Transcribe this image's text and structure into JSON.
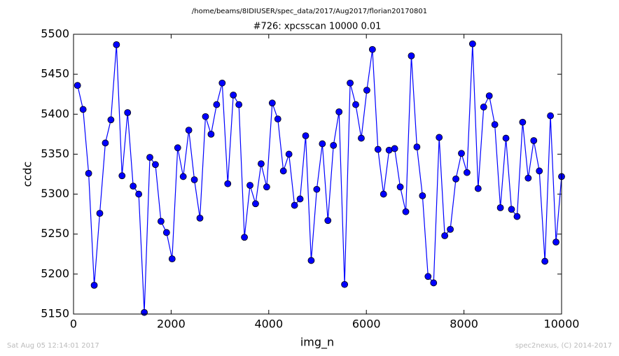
{
  "chart_data": {
    "type": "line",
    "suptitle": "/home/beams/8IDIUSER/spec_data/2017/Aug2017/florian20170801",
    "title": "#726: xpcsscan 10000 0.01",
    "x_label": "img_n",
    "y_label": "ccdc",
    "footer_left": "Sat Aug 05 12:14:01 2017",
    "footer_right": "spec2nexus, (C) 2014-2017",
    "x": [
      82,
      196,
      310,
      424,
      538,
      652,
      766,
      880,
      994,
      1108,
      1222,
      1336,
      1450,
      1564,
      1678,
      1792,
      1906,
      2020,
      2134,
      2248,
      2362,
      2476,
      2590,
      2704,
      2818,
      2932,
      3046,
      3160,
      3274,
      3388,
      3502,
      3616,
      3730,
      3844,
      3958,
      4072,
      4186,
      4300,
      4414,
      4528,
      4642,
      4756,
      4870,
      4984,
      5098,
      5212,
      5326,
      5440,
      5554,
      5668,
      5782,
      5896,
      6010,
      6124,
      6238,
      6352,
      6466,
      6580,
      6694,
      6808,
      6922,
      7036,
      7150,
      7264,
      7378,
      7492,
      7606,
      7720,
      7834,
      7948,
      8062,
      8176,
      8290,
      8404,
      8518,
      8632,
      8746,
      8860,
      8974,
      9088,
      9202,
      9316,
      9430,
      9544,
      9658,
      9772,
      9886,
      10000
    ],
    "series": [
      {
        "color": "#0000ff",
        "marker_edge": "#000000",
        "values": [
          5436,
          5406,
          5326,
          5186,
          5276,
          5364,
          5393,
          5487,
          5323,
          5402,
          5310,
          5300,
          5152,
          5346,
          5337,
          5266,
          5252,
          5219,
          5358,
          5322,
          5380,
          5318,
          5270,
          5397,
          5375,
          5412,
          5439,
          5313,
          5424,
          5412,
          5246,
          5311,
          5288,
          5338,
          5309,
          5414,
          5394,
          5329,
          5350,
          5286,
          5294,
          5373,
          5217,
          5306,
          5363,
          5267,
          5361,
          5403,
          5187,
          5439,
          5412,
          5370,
          5430,
          5481,
          5356,
          5300,
          5355,
          5357,
          5309,
          5278,
          5473,
          5359,
          5298,
          5197,
          5189,
          5371,
          5248,
          5256,
          5319,
          5351,
          5327,
          5488,
          5307,
          5409,
          5423,
          5387,
          5283,
          5370,
          5281,
          5272,
          5390,
          5320,
          5367,
          5329,
          5216,
          5398,
          5240,
          5322
        ]
      }
    ],
    "xlim": [
      0,
      10000
    ],
    "xticks": [
      0,
      2000,
      4000,
      6000,
      8000,
      10000
    ],
    "ylim": [
      5150,
      5500
    ],
    "yticks": [
      5150,
      5200,
      5250,
      5300,
      5350,
      5400,
      5450,
      5500
    ]
  }
}
